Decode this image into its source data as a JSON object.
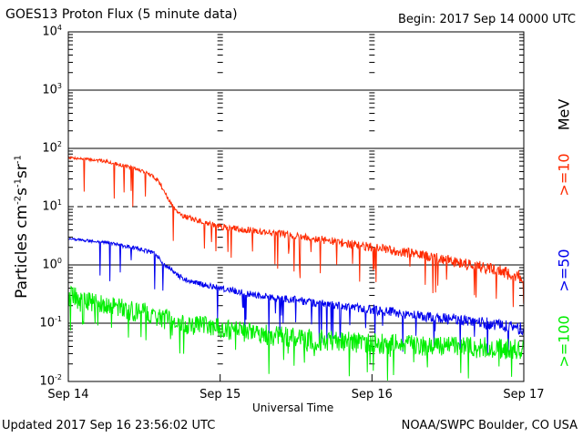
{
  "header": {
    "title": "GOES13 Proton Flux (5 minute data)",
    "begin": "Begin: 2017 Sep 14 0000 UTC"
  },
  "footer": {
    "updated": "Updated 2017 Sep 16 23:56:02 UTC",
    "credit": "NOAA/SWPC Boulder, CO USA"
  },
  "chart_data": {
    "type": "line",
    "title": "GOES13 Proton Flux (5 minute data)",
    "xlabel": "Universal Time",
    "ylabel_base": "Particles cm",
    "ylabel_sup1": "-2",
    "ylabel_mid1": "s",
    "ylabel_sup2": "-1",
    "ylabel_mid2": "sr",
    "ylabel_sup3": "-1",
    "y_scale": "log",
    "ylim": [
      0.01,
      10000
    ],
    "yticks": [
      {
        "base": "10",
        "exp": "4",
        "value": 10000
      },
      {
        "base": "10",
        "exp": "3",
        "value": 1000
      },
      {
        "base": "10",
        "exp": "2",
        "value": 100
      },
      {
        "base": "10",
        "exp": "1",
        "value": 10
      },
      {
        "base": "10",
        "exp": "0",
        "value": 1
      },
      {
        "base": "10",
        "exp": "-1",
        "value": 0.1
      },
      {
        "base": "10",
        "exp": "-2",
        "value": 0.01
      }
    ],
    "xlim": [
      "2017-09-14T00:00",
      "2017-09-17T00:00"
    ],
    "xticks": [
      {
        "label": "Sep 14",
        "value": "2017-09-14T00:00"
      },
      {
        "label": "Sep 15",
        "value": "2017-09-15T00:00"
      },
      {
        "label": "Sep 16",
        "value": "2017-09-16T00:00"
      },
      {
        "label": "Sep 17",
        "value": "2017-09-17T00:00"
      }
    ],
    "grid": {
      "solid_lines_at": [
        1000,
        100,
        1,
        0.1
      ],
      "dashed_lines_at": [
        10
      ]
    },
    "energy_unit": "MeV",
    "series": [
      {
        "name": ">=10",
        "color": "#ff2a00",
        "x": [
          "2017-09-14T00:00",
          "2017-09-14T03:00",
          "2017-09-14T06:00",
          "2017-09-14T09:00",
          "2017-09-14T12:00",
          "2017-09-14T14:00",
          "2017-09-14T15:00",
          "2017-09-14T16:00",
          "2017-09-14T17:00",
          "2017-09-14T18:00",
          "2017-09-14T20:00",
          "2017-09-15T00:00",
          "2017-09-15T06:00",
          "2017-09-15T12:00",
          "2017-09-15T18:00",
          "2017-09-16T00:00",
          "2017-09-16T06:00",
          "2017-09-16T12:00",
          "2017-09-16T18:00",
          "2017-09-17T00:00"
        ],
        "values": [
          70,
          65,
          60,
          50,
          40,
          30,
          20,
          12,
          9,
          7,
          6,
          4.5,
          3.8,
          3.2,
          2.5,
          2.0,
          1.6,
          1.2,
          0.9,
          0.6
        ]
      },
      {
        "name": ">=50",
        "color": "#0000ee",
        "x": [
          "2017-09-14T00:00",
          "2017-09-14T03:00",
          "2017-09-14T06:00",
          "2017-09-14T09:00",
          "2017-09-14T12:00",
          "2017-09-14T14:00",
          "2017-09-14T15:00",
          "2017-09-14T16:00",
          "2017-09-14T17:00",
          "2017-09-14T18:00",
          "2017-09-14T20:00",
          "2017-09-15T00:00",
          "2017-09-15T06:00",
          "2017-09-15T12:00",
          "2017-09-15T18:00",
          "2017-09-16T00:00",
          "2017-09-16T06:00",
          "2017-09-16T12:00",
          "2017-09-16T18:00",
          "2017-09-17T00:00"
        ],
        "values": [
          2.8,
          2.6,
          2.4,
          2.1,
          1.8,
          1.5,
          1.0,
          0.9,
          0.7,
          0.6,
          0.5,
          0.4,
          0.3,
          0.25,
          0.2,
          0.17,
          0.14,
          0.12,
          0.1,
          0.08
        ]
      },
      {
        "name": ">=100",
        "color": "#00ee00",
        "x": [
          "2017-09-14T00:00",
          "2017-09-14T03:00",
          "2017-09-14T06:00",
          "2017-09-14T09:00",
          "2017-09-14T12:00",
          "2017-09-14T15:00",
          "2017-09-14T18:00",
          "2017-09-15T00:00",
          "2017-09-15T06:00",
          "2017-09-15T12:00",
          "2017-09-15T18:00",
          "2017-09-16T00:00",
          "2017-09-16T06:00",
          "2017-09-16T12:00",
          "2017-09-16T18:00",
          "2017-09-17T00:00"
        ],
        "values": [
          0.3,
          0.25,
          0.2,
          0.17,
          0.15,
          0.12,
          0.1,
          0.08,
          0.065,
          0.055,
          0.05,
          0.045,
          0.042,
          0.04,
          0.038,
          0.035
        ]
      }
    ]
  }
}
